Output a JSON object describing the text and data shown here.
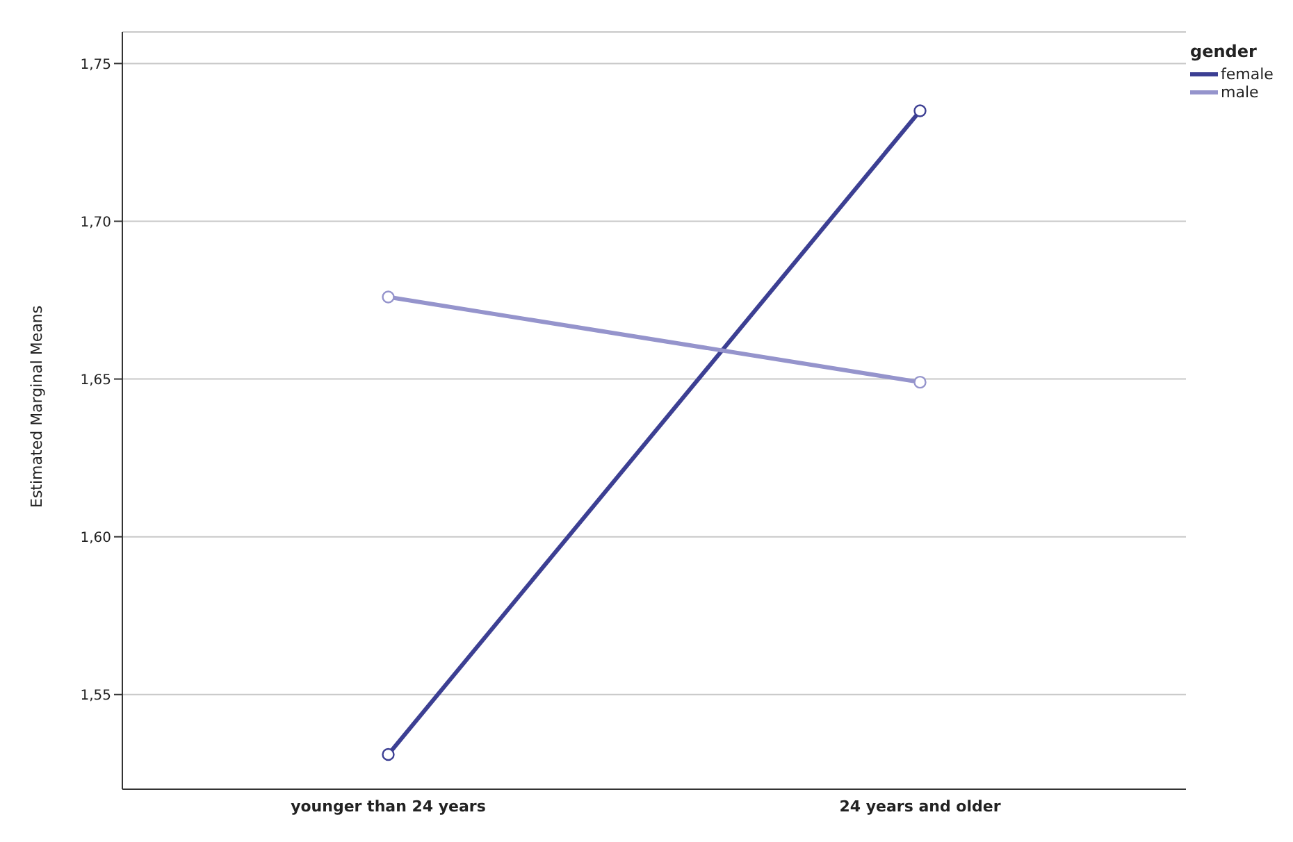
{
  "chart_data": {
    "type": "line",
    "ylabel": "Estimated Marginal Means",
    "legend_title": "gender",
    "categories": [
      "younger than 24 years",
      "24 years and older"
    ],
    "series": [
      {
        "name": "female",
        "color": "#3c3f93",
        "values": [
          1.531,
          1.735
        ]
      },
      {
        "name": "male",
        "color": "#9594cc",
        "values": [
          1.676,
          1.649
        ]
      }
    ],
    "ylim": [
      1.52,
      1.76
    ],
    "yticks": [
      {
        "value": 1.55,
        "label": "1,55"
      },
      {
        "value": 1.6,
        "label": "1,60"
      },
      {
        "value": 1.65,
        "label": "1,65"
      },
      {
        "value": 1.7,
        "label": "1,70"
      },
      {
        "value": 1.75,
        "label": "1,75"
      }
    ],
    "grid": "y",
    "legend": "top right",
    "marker": "circle",
    "line_style": "solid"
  }
}
